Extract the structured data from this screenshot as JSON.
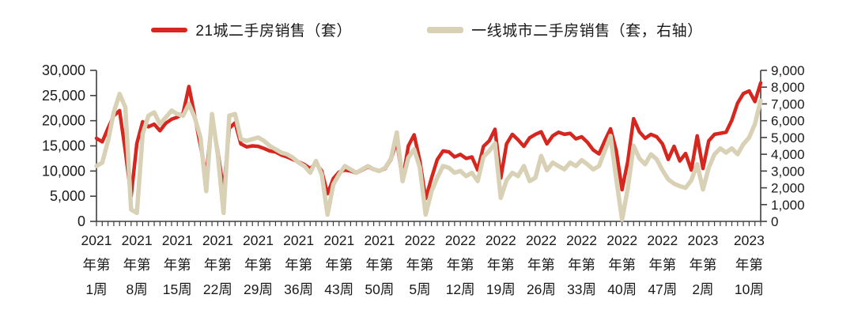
{
  "legend": {
    "items": [
      {
        "label": "21城二手房销售（套）",
        "color": "#d6261e"
      },
      {
        "label": "一线城市二手房销售（套，右轴）",
        "color": "#d8d1b5"
      }
    ]
  },
  "chart_data": {
    "type": "line",
    "title": "",
    "x": {
      "unit": "week",
      "count": 116,
      "range_description": "2021年第1周 至 2023年第12周, 每周一个数据点",
      "tick_indices": [
        0,
        7,
        14,
        21,
        28,
        35,
        42,
        49,
        56,
        63,
        70,
        77,
        84,
        91,
        98,
        105,
        113
      ],
      "tick_labels": [
        [
          "2021",
          "年第",
          "1周"
        ],
        [
          "2021",
          "年第",
          "8周"
        ],
        [
          "2021",
          "年第",
          "15周"
        ],
        [
          "2021",
          "年第",
          "22周"
        ],
        [
          "2021",
          "年第",
          "29周"
        ],
        [
          "2021",
          "年第",
          "36周"
        ],
        [
          "2021",
          "年第",
          "43周"
        ],
        [
          "2021",
          "年第",
          "50周"
        ],
        [
          "2022",
          "年第",
          "5周"
        ],
        [
          "2022",
          "年第",
          "12周"
        ],
        [
          "2022",
          "年第",
          "19周"
        ],
        [
          "2022",
          "年第",
          "26周"
        ],
        [
          "2022",
          "年第",
          "33周"
        ],
        [
          "2022",
          "年第",
          "40周"
        ],
        [
          "2022",
          "年第",
          "47周"
        ],
        [
          "2023",
          "年第",
          "2周"
        ],
        [
          "2023",
          "年第",
          "10周"
        ]
      ]
    },
    "left_axis": {
      "min": 0,
      "max": 30000,
      "tick_step": 5000,
      "tick_labels": [
        "30,000",
        "25,000",
        "20,000",
        "15,000",
        "10,000",
        "5,000",
        "0"
      ]
    },
    "right_axis": {
      "min": 0,
      "max": 9000,
      "tick_step": 1000,
      "tick_labels": [
        "9,000",
        "8,000",
        "7,000",
        "6,000",
        "5,000",
        "4,000",
        "3,000",
        "2,000",
        "1,000",
        "0"
      ]
    },
    "grid": false,
    "legend_position": "top",
    "series": [
      {
        "name": "21城二手房销售（套）",
        "axis": "left",
        "color": "#d6261e",
        "line_width": 4.5,
        "values": [
          16500,
          15800,
          18500,
          21000,
          22000,
          14000,
          5000,
          15500,
          19800,
          18800,
          19300,
          18000,
          19500,
          20300,
          20700,
          21500,
          26800,
          21000,
          15000,
          9000,
          20700,
          14000,
          6000,
          18500,
          19600,
          15400,
          14800,
          15000,
          14900,
          14500,
          14000,
          13800,
          13200,
          12800,
          12300,
          11800,
          11300,
          10500,
          11500,
          10000,
          5500,
          8500,
          9800,
          10200,
          10000,
          9600,
          10200,
          10800,
          10300,
          10000,
          10500,
          12300,
          16000,
          8100,
          15000,
          17200,
          12000,
          4500,
          8600,
          12300,
          14000,
          13800,
          12800,
          13300,
          12500,
          12800,
          10200,
          14900,
          16000,
          18300,
          8600,
          15400,
          17300,
          16200,
          14900,
          16600,
          17300,
          17800,
          15400,
          17000,
          17700,
          17300,
          17500,
          16400,
          16800,
          15700,
          14200,
          13400,
          16000,
          18400,
          14000,
          6300,
          12000,
          20400,
          17800,
          16500,
          17300,
          16800,
          15400,
          12300,
          14900,
          12000,
          13500,
          10200,
          17000,
          10500,
          16000,
          17300,
          17500,
          17700,
          20100,
          23500,
          25400,
          25900,
          23800,
          27500
        ]
      },
      {
        "name": "一线城市二手房销售（套，右轴）",
        "axis": "right",
        "color": "#d8d1b5",
        "line_width": 5.5,
        "values": [
          3300,
          3500,
          4800,
          6500,
          7600,
          6800,
          700,
          500,
          5200,
          6300,
          6500,
          5800,
          6200,
          6600,
          6400,
          6300,
          7000,
          6200,
          5000,
          1800,
          6400,
          4000,
          500,
          6300,
          6400,
          4900,
          4800,
          4900,
          5000,
          4800,
          4500,
          4300,
          4100,
          4000,
          3800,
          3500,
          3300,
          2900,
          3600,
          2800,
          400,
          2200,
          2800,
          3300,
          3100,
          2900,
          3100,
          3300,
          3100,
          3000,
          3200,
          3750,
          5300,
          2400,
          3800,
          4300,
          3200,
          400,
          1800,
          2600,
          3300,
          3200,
          2900,
          3000,
          2700,
          2900,
          2400,
          3850,
          4200,
          4650,
          1400,
          2450,
          2900,
          2700,
          3300,
          2400,
          2600,
          3900,
          3050,
          3500,
          3300,
          3100,
          3500,
          3300,
          3650,
          3400,
          3100,
          3300,
          4200,
          5100,
          2500,
          100,
          2000,
          4500,
          3750,
          3400,
          4000,
          3700,
          3050,
          2500,
          2250,
          2100,
          2000,
          2450,
          3400,
          1900,
          3200,
          4000,
          4350,
          4100,
          4350,
          4000,
          4600,
          5000,
          5800,
          7200
        ]
      }
    ]
  },
  "style": {
    "axis_color": "#3f3f3f",
    "text_color": "#1a1a1a",
    "background": "#ffffff"
  }
}
